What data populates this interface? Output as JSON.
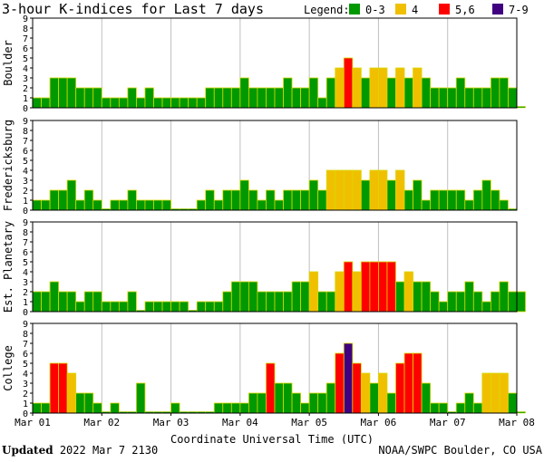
{
  "title": "3-hour K-indices for Last 7 days",
  "legend": {
    "label": "Legend:",
    "items": [
      {
        "label": "0-3",
        "color": "#009900"
      },
      {
        "label": "4",
        "color": "#f0c000"
      },
      {
        "label": "5,6",
        "color": "#ff0000"
      },
      {
        "label": "7-9",
        "color": "#400080"
      }
    ]
  },
  "colors": {
    "bar_outline": "#d8d800",
    "grid": "#c0c0c0"
  },
  "footer": {
    "updated_label": "Updated",
    "updated_value": "2022 Mar  7 2130",
    "source": "NOAA/SWPC Boulder, CO USA"
  },
  "chart_data": {
    "type": "bar",
    "title": "3-hour K-indices for Last 7 days",
    "xlabel": "Coordinate Universal Time (UTC)",
    "xticks": [
      "Mar 01",
      "Mar 02",
      "Mar 03",
      "Mar 04",
      "Mar 05",
      "Mar 06",
      "Mar 07",
      "Mar 08"
    ],
    "ylim": [
      0,
      9
    ],
    "yticks": [
      0,
      1,
      2,
      3,
      4,
      5,
      6,
      7,
      8,
      9
    ],
    "bars_per_day": 8,
    "panels": [
      {
        "name": "Boulder",
        "values": [
          1,
          1,
          3,
          3,
          3,
          2,
          2,
          2,
          1,
          1,
          1,
          2,
          1,
          2,
          1,
          1,
          1,
          1,
          1,
          1,
          2,
          2,
          2,
          2,
          3,
          2,
          2,
          2,
          2,
          3,
          2,
          2,
          3,
          1,
          3,
          4,
          5,
          4,
          3,
          4,
          4,
          3,
          4,
          3,
          4,
          3,
          2,
          2,
          2,
          3,
          2,
          2,
          2,
          3,
          3,
          2,
          0
        ]
      },
      {
        "name": "Fredericksburg",
        "values": [
          1,
          1,
          2,
          2,
          3,
          1,
          2,
          1,
          0,
          1,
          1,
          2,
          1,
          1,
          1,
          1,
          0,
          0,
          0,
          1,
          2,
          1,
          2,
          2,
          3,
          2,
          1,
          2,
          1,
          2,
          2,
          2,
          3,
          2,
          4,
          4,
          4,
          4,
          3,
          4,
          4,
          3,
          4,
          2,
          3,
          1,
          2,
          2,
          2,
          2,
          1,
          2,
          3,
          2,
          1,
          0
        ]
      },
      {
        "name": "Est. Planetary",
        "values": [
          2,
          2,
          3,
          2,
          2,
          1,
          2,
          2,
          1,
          1,
          1,
          2,
          0,
          1,
          1,
          1,
          1,
          1,
          0,
          1,
          1,
          1,
          2,
          3,
          3,
          3,
          2,
          2,
          2,
          2,
          3,
          3,
          4,
          2,
          2,
          4,
          5,
          4,
          5,
          5,
          5,
          5,
          3,
          4,
          3,
          3,
          2,
          1,
          2,
          2,
          3,
          2,
          1,
          2,
          3,
          2,
          2
        ]
      },
      {
        "name": "College",
        "values": [
          1,
          1,
          5,
          5,
          4,
          2,
          2,
          1,
          0,
          1,
          0,
          0,
          3,
          0,
          0,
          0,
          1,
          0,
          0,
          0,
          0,
          1,
          1,
          1,
          1,
          2,
          2,
          5,
          3,
          3,
          2,
          1,
          2,
          2,
          3,
          6,
          7,
          5,
          4,
          3,
          4,
          2,
          5,
          6,
          6,
          3,
          1,
          1,
          0,
          1,
          2,
          1,
          4,
          4,
          4,
          2,
          0
        ]
      }
    ]
  }
}
